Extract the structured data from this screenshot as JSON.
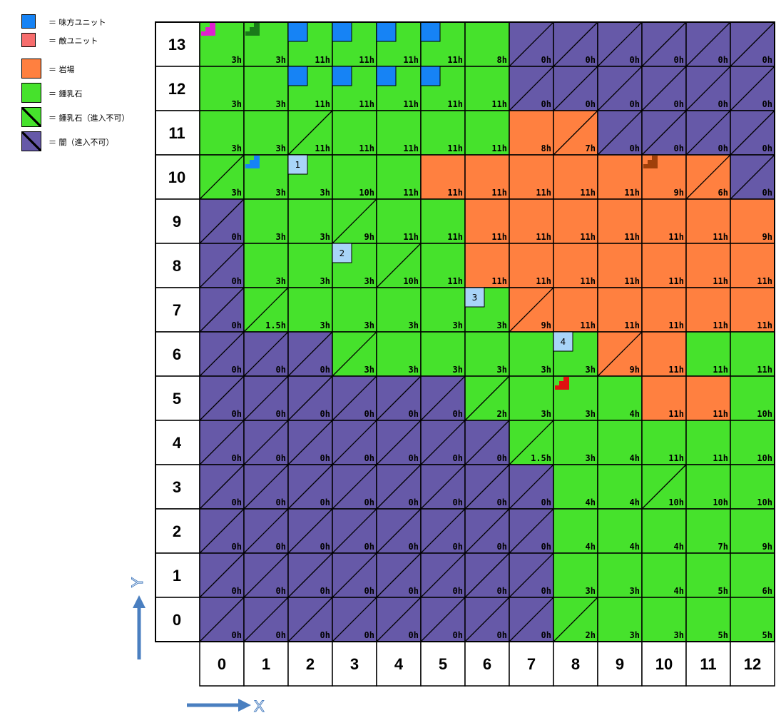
{
  "legend": [
    {
      "color": "#1683f5",
      "text": "＝ 味方ユニット",
      "hatched": false,
      "small": true
    },
    {
      "color": "#f76d6d",
      "text": "＝ 敵ユニット",
      "hatched": false,
      "small": true
    },
    {
      "color": "#ff8040",
      "text": "＝ 岩場",
      "hatched": false,
      "small": false
    },
    {
      "color": "#46e22c",
      "text": "＝ 鍾乳石",
      "hatched": false,
      "small": false
    },
    {
      "color": "#46e22c",
      "text": "＝ 鍾乳石（進入不可）",
      "hatched": true,
      "small": false
    },
    {
      "color": "#6659a8",
      "text": "＝ 闇（進入不可）",
      "hatched": true,
      "small": false
    }
  ],
  "colors": {
    "G": "#46e22c",
    "O": "#ff8040",
    "P": "#6659a8",
    "ally": "#1683f5",
    "marker": "#a8d4f8"
  },
  "x_labels": [
    "0",
    "1",
    "2",
    "3",
    "4",
    "5",
    "6",
    "7",
    "8",
    "9",
    "10",
    "11",
    "12"
  ],
  "y_labels": [
    "13",
    "12",
    "11",
    "10",
    "9",
    "8",
    "7",
    "6",
    "5",
    "4",
    "3",
    "2",
    "1",
    "0"
  ],
  "grid": [
    {
      "y": 13,
      "cells": [
        [
          "G",
          "3h",
          0
        ],
        [
          "G",
          "3h",
          0
        ],
        [
          "G",
          "11h",
          0
        ],
        [
          "G",
          "11h",
          0
        ],
        [
          "G",
          "11h",
          0
        ],
        [
          "G",
          "11h",
          0
        ],
        [
          "G",
          "8h",
          0
        ],
        [
          "P",
          "0h",
          1
        ],
        [
          "P",
          "0h",
          1
        ],
        [
          "P",
          "0h",
          1
        ],
        [
          "P",
          "0h",
          1
        ],
        [
          "P",
          "0h",
          1
        ],
        [
          "P",
          "0h",
          1
        ]
      ]
    },
    {
      "y": 12,
      "cells": [
        [
          "G",
          "3h",
          0
        ],
        [
          "G",
          "3h",
          0
        ],
        [
          "G",
          "11h",
          0
        ],
        [
          "G",
          "11h",
          0
        ],
        [
          "G",
          "11h",
          0
        ],
        [
          "G",
          "11h",
          0
        ],
        [
          "G",
          "11h",
          0
        ],
        [
          "P",
          "0h",
          1
        ],
        [
          "P",
          "0h",
          1
        ],
        [
          "P",
          "0h",
          1
        ],
        [
          "P",
          "0h",
          1
        ],
        [
          "P",
          "0h",
          1
        ],
        [
          "P",
          "0h",
          1
        ]
      ]
    },
    {
      "y": 11,
      "cells": [
        [
          "G",
          "3h",
          0
        ],
        [
          "G",
          "3h",
          0
        ],
        [
          "G",
          "11h",
          1
        ],
        [
          "G",
          "11h",
          0
        ],
        [
          "G",
          "11h",
          0
        ],
        [
          "G",
          "11h",
          0
        ],
        [
          "G",
          "11h",
          0
        ],
        [
          "O",
          "8h",
          0
        ],
        [
          "O",
          "7h",
          1
        ],
        [
          "P",
          "0h",
          1
        ],
        [
          "P",
          "0h",
          1
        ],
        [
          "P",
          "0h",
          1
        ],
        [
          "P",
          "0h",
          1
        ]
      ]
    },
    {
      "y": 10,
      "cells": [
        [
          "G",
          "3h",
          1
        ],
        [
          "G",
          "3h",
          0
        ],
        [
          "G",
          "3h",
          0
        ],
        [
          "G",
          "10h",
          0
        ],
        [
          "G",
          "11h",
          0
        ],
        [
          "O",
          "11h",
          0
        ],
        [
          "O",
          "11h",
          0
        ],
        [
          "O",
          "11h",
          0
        ],
        [
          "O",
          "11h",
          0
        ],
        [
          "O",
          "11h",
          0
        ],
        [
          "O",
          "9h",
          0
        ],
        [
          "O",
          "6h",
          1
        ],
        [
          "P",
          "0h",
          1
        ]
      ]
    },
    {
      "y": 9,
      "cells": [
        [
          "P",
          "0h",
          1
        ],
        [
          "G",
          "3h",
          0
        ],
        [
          "G",
          "3h",
          0
        ],
        [
          "G",
          "9h",
          1
        ],
        [
          "G",
          "11h",
          0
        ],
        [
          "G",
          "11h",
          0
        ],
        [
          "O",
          "11h",
          0
        ],
        [
          "O",
          "11h",
          0
        ],
        [
          "O",
          "11h",
          0
        ],
        [
          "O",
          "11h",
          0
        ],
        [
          "O",
          "11h",
          0
        ],
        [
          "O",
          "11h",
          0
        ],
        [
          "O",
          "9h",
          0
        ]
      ]
    },
    {
      "y": 8,
      "cells": [
        [
          "P",
          "0h",
          1
        ],
        [
          "G",
          "3h",
          0
        ],
        [
          "G",
          "3h",
          0
        ],
        [
          "G",
          "3h",
          0
        ],
        [
          "G",
          "10h",
          1
        ],
        [
          "G",
          "11h",
          0
        ],
        [
          "O",
          "11h",
          0
        ],
        [
          "O",
          "11h",
          0
        ],
        [
          "O",
          "11h",
          0
        ],
        [
          "O",
          "11h",
          0
        ],
        [
          "O",
          "11h",
          0
        ],
        [
          "O",
          "11h",
          0
        ],
        [
          "O",
          "11h",
          0
        ]
      ]
    },
    {
      "y": 7,
      "cells": [
        [
          "P",
          "0h",
          1
        ],
        [
          "G",
          "1.5h",
          1
        ],
        [
          "G",
          "3h",
          0
        ],
        [
          "G",
          "3h",
          0
        ],
        [
          "G",
          "3h",
          0
        ],
        [
          "G",
          "3h",
          0
        ],
        [
          "G",
          "3h",
          0
        ],
        [
          "O",
          "9h",
          1
        ],
        [
          "O",
          "11h",
          0
        ],
        [
          "O",
          "11h",
          0
        ],
        [
          "O",
          "11h",
          0
        ],
        [
          "O",
          "11h",
          0
        ],
        [
          "O",
          "11h",
          0
        ]
      ]
    },
    {
      "y": 6,
      "cells": [
        [
          "P",
          "0h",
          1
        ],
        [
          "P",
          "0h",
          1
        ],
        [
          "P",
          "0h",
          1
        ],
        [
          "G",
          "3h",
          1
        ],
        [
          "G",
          "3h",
          0
        ],
        [
          "G",
          "3h",
          0
        ],
        [
          "G",
          "3h",
          0
        ],
        [
          "G",
          "3h",
          0
        ],
        [
          "G",
          "3h",
          0
        ],
        [
          "O",
          "9h",
          1
        ],
        [
          "O",
          "11h",
          0
        ],
        [
          "G",
          "11h",
          0
        ],
        [
          "G",
          "11h",
          0
        ]
      ]
    },
    {
      "y": 5,
      "cells": [
        [
          "P",
          "0h",
          1
        ],
        [
          "P",
          "0h",
          1
        ],
        [
          "P",
          "0h",
          1
        ],
        [
          "P",
          "0h",
          1
        ],
        [
          "P",
          "0h",
          1
        ],
        [
          "P",
          "0h",
          1
        ],
        [
          "G",
          "2h",
          1
        ],
        [
          "G",
          "3h",
          0
        ],
        [
          "G",
          "3h",
          0
        ],
        [
          "G",
          "4h",
          0
        ],
        [
          "O",
          "11h",
          0
        ],
        [
          "O",
          "11h",
          0
        ],
        [
          "G",
          "10h",
          0
        ]
      ]
    },
    {
      "y": 4,
      "cells": [
        [
          "P",
          "0h",
          1
        ],
        [
          "P",
          "0h",
          1
        ],
        [
          "P",
          "0h",
          1
        ],
        [
          "P",
          "0h",
          1
        ],
        [
          "P",
          "0h",
          1
        ],
        [
          "P",
          "0h",
          1
        ],
        [
          "P",
          "0h",
          1
        ],
        [
          "G",
          "1.5h",
          1
        ],
        [
          "G",
          "3h",
          0
        ],
        [
          "G",
          "4h",
          0
        ],
        [
          "G",
          "11h",
          0
        ],
        [
          "G",
          "11h",
          0
        ],
        [
          "G",
          "10h",
          0
        ]
      ]
    },
    {
      "y": 3,
      "cells": [
        [
          "P",
          "0h",
          1
        ],
        [
          "P",
          "0h",
          1
        ],
        [
          "P",
          "0h",
          1
        ],
        [
          "P",
          "0h",
          1
        ],
        [
          "P",
          "0h",
          1
        ],
        [
          "P",
          "0h",
          1
        ],
        [
          "P",
          "0h",
          1
        ],
        [
          "P",
          "0h",
          1
        ],
        [
          "G",
          "4h",
          0
        ],
        [
          "G",
          "4h",
          0
        ],
        [
          "G",
          "10h",
          1
        ],
        [
          "G",
          "10h",
          0
        ],
        [
          "G",
          "10h",
          0
        ]
      ]
    },
    {
      "y": 2,
      "cells": [
        [
          "P",
          "0h",
          1
        ],
        [
          "P",
          "0h",
          1
        ],
        [
          "P",
          "0h",
          1
        ],
        [
          "P",
          "0h",
          1
        ],
        [
          "P",
          "0h",
          1
        ],
        [
          "P",
          "0h",
          1
        ],
        [
          "P",
          "0h",
          1
        ],
        [
          "P",
          "0h",
          1
        ],
        [
          "G",
          "4h",
          0
        ],
        [
          "G",
          "4h",
          0
        ],
        [
          "G",
          "4h",
          0
        ],
        [
          "G",
          "7h",
          0
        ],
        [
          "G",
          "9h",
          0
        ]
      ]
    },
    {
      "y": 1,
      "cells": [
        [
          "P",
          "0h",
          1
        ],
        [
          "P",
          "0h",
          1
        ],
        [
          "P",
          "0h",
          1
        ],
        [
          "P",
          "0h",
          1
        ],
        [
          "P",
          "0h",
          1
        ],
        [
          "P",
          "0h",
          1
        ],
        [
          "P",
          "0h",
          1
        ],
        [
          "P",
          "0h",
          1
        ],
        [
          "G",
          "3h",
          0
        ],
        [
          "G",
          "3h",
          0
        ],
        [
          "G",
          "4h",
          0
        ],
        [
          "G",
          "5h",
          0
        ],
        [
          "G",
          "6h",
          0
        ]
      ]
    },
    {
      "y": 0,
      "cells": [
        [
          "P",
          "0h",
          1
        ],
        [
          "P",
          "0h",
          1
        ],
        [
          "P",
          "0h",
          1
        ],
        [
          "P",
          "0h",
          1
        ],
        [
          "P",
          "0h",
          1
        ],
        [
          "P",
          "0h",
          1
        ],
        [
          "P",
          "0h",
          1
        ],
        [
          "P",
          "0h",
          1
        ],
        [
          "G",
          "2h",
          1
        ],
        [
          "G",
          "3h",
          0
        ],
        [
          "G",
          "3h",
          0
        ],
        [
          "G",
          "5h",
          0
        ],
        [
          "G",
          "5h",
          0
        ]
      ]
    }
  ],
  "ally_units": [
    [
      2,
      13
    ],
    [
      3,
      13
    ],
    [
      4,
      13
    ],
    [
      5,
      13
    ],
    [
      2,
      12
    ],
    [
      3,
      12
    ],
    [
      4,
      12
    ],
    [
      5,
      12
    ]
  ],
  "step_markers": [
    {
      "x": 0,
      "y": 13,
      "color": "#e020d0"
    },
    {
      "x": 1,
      "y": 13,
      "color": "#1a7a1a"
    },
    {
      "x": 1,
      "y": 10,
      "color": "#1683f5"
    },
    {
      "x": 10,
      "y": 10,
      "color": "#a0400a"
    },
    {
      "x": 8,
      "y": 5,
      "color": "#e01010"
    }
  ],
  "numbered_markers": [
    {
      "label": "1",
      "x": 2,
      "y": 10
    },
    {
      "label": "2",
      "x": 3,
      "y": 8
    },
    {
      "label": "3",
      "x": 6,
      "y": 7
    },
    {
      "label": "4",
      "x": 8,
      "y": 6
    }
  ],
  "axis": {
    "x": "X",
    "y": "Y"
  }
}
